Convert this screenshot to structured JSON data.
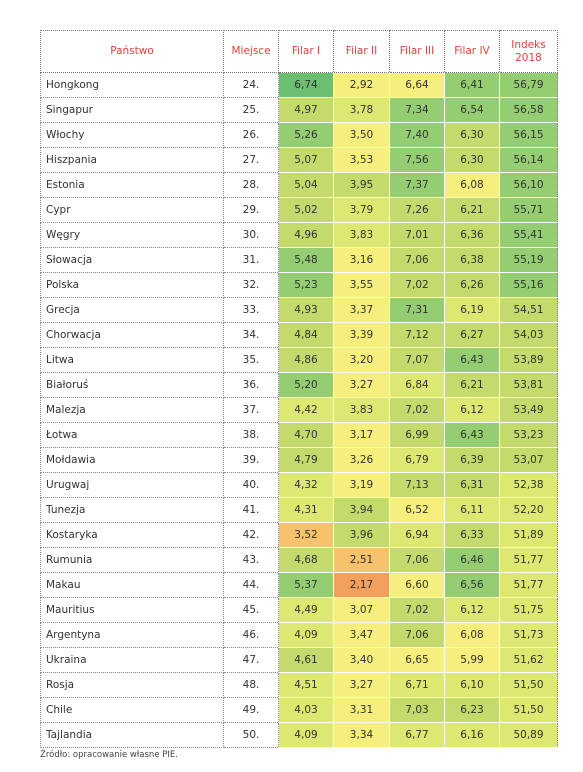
{
  "headers": {
    "country": "Państwo",
    "place": "Miejsce",
    "f1": "Filar I",
    "f2": "Filar II",
    "f3": "Filar III",
    "f4": "Filar IV",
    "index": "Indeks\n2018"
  },
  "colors": {
    "dark_green": "#6cbf71",
    "mid_green": "#95ce72",
    "light_green": "#c3db6c",
    "yellow_green": "#dde872",
    "yellow": "#f6ef7d",
    "orange": "#f6c26c",
    "dark_orange": "#f2a05e",
    "header_text": "#e0433c"
  },
  "rows": [
    {
      "country": "Hongkong",
      "place": "24.",
      "f1": "6,74",
      "f2": "2,92",
      "f3": "6,64",
      "f4": "6,41",
      "index": "56,79"
    },
    {
      "country": "Singapur",
      "place": "25.",
      "f1": "4,97",
      "f2": "3,78",
      "f3": "7,34",
      "f4": "6,54",
      "index": "56,58"
    },
    {
      "country": "Włochy",
      "place": "26.",
      "f1": "5,26",
      "f2": "3,50",
      "f3": "7,40",
      "f4": "6,30",
      "index": "56,15"
    },
    {
      "country": "Hiszpania",
      "place": "27.",
      "f1": "5,07",
      "f2": "3,53",
      "f3": "7,56",
      "f4": "6,30",
      "index": "56,14"
    },
    {
      "country": "Estonia",
      "place": "28.",
      "f1": "5,04",
      "f2": "3,95",
      "f3": "7,37",
      "f4": "6,08",
      "index": "56,10"
    },
    {
      "country": "Cypr",
      "place": "29.",
      "f1": "5,02",
      "f2": "3,79",
      "f3": "7,26",
      "f4": "6,21",
      "index": "55,71"
    },
    {
      "country": "Węgry",
      "place": "30.",
      "f1": "4,96",
      "f2": "3,83",
      "f3": "7,01",
      "f4": "6,36",
      "index": "55,41"
    },
    {
      "country": "Słowacja",
      "place": "31.",
      "f1": "5,48",
      "f2": "3,16",
      "f3": "7,06",
      "f4": "6,38",
      "index": "55,19"
    },
    {
      "country": "Polska",
      "place": "32.",
      "f1": "5,23",
      "f2": "3,55",
      "f3": "7,02",
      "f4": "6,26",
      "index": "55,16"
    },
    {
      "country": "Grecja",
      "place": "33.",
      "f1": "4,93",
      "f2": "3,37",
      "f3": "7,31",
      "f4": "6,19",
      "index": "54,51"
    },
    {
      "country": "Chorwacja",
      "place": "34.",
      "f1": "4,84",
      "f2": "3,39",
      "f3": "7,12",
      "f4": "6,27",
      "index": "54,03"
    },
    {
      "country": "Litwa",
      "place": "35.",
      "f1": "4,86",
      "f2": "3,20",
      "f3": "7,07",
      "f4": "6,43",
      "index": "53,89"
    },
    {
      "country": "Białoruś",
      "place": "36.",
      "f1": "5,20",
      "f2": "3,27",
      "f3": "6,84",
      "f4": "6,21",
      "index": "53,81"
    },
    {
      "country": "Malezja",
      "place": "37.",
      "f1": "4,42",
      "f2": "3,83",
      "f3": "7,02",
      "f4": "6,12",
      "index": "53,49"
    },
    {
      "country": "Łotwa",
      "place": "38.",
      "f1": "4,70",
      "f2": "3,17",
      "f3": "6,99",
      "f4": "6,43",
      "index": "53,23"
    },
    {
      "country": "Mołdawia",
      "place": "39.",
      "f1": "4,79",
      "f2": "3,26",
      "f3": "6,79",
      "f4": "6,39",
      "index": "53,07"
    },
    {
      "country": "Urugwaj",
      "place": "40.",
      "f1": "4,32",
      "f2": "3,19",
      "f3": "7,13",
      "f4": "6,31",
      "index": "52,38"
    },
    {
      "country": "Tunezja",
      "place": "41.",
      "f1": "4,31",
      "f2": "3,94",
      "f3": "6,52",
      "f4": "6,11",
      "index": "52,20"
    },
    {
      "country": "Kostaryka",
      "place": "42.",
      "f1": "3,52",
      "f2": "3,96",
      "f3": "6,94",
      "f4": "6,33",
      "index": "51,89"
    },
    {
      "country": "Rumunia",
      "place": "43.",
      "f1": "4,68",
      "f2": "2,51",
      "f3": "7,06",
      "f4": "6,46",
      "index": "51,77"
    },
    {
      "country": "Makau",
      "place": "44.",
      "f1": "5,37",
      "f2": "2,17",
      "f3": "6,60",
      "f4": "6,56",
      "index": "51,77"
    },
    {
      "country": "Mauritius",
      "place": "45.",
      "f1": "4,49",
      "f2": "3,07",
      "f3": "7,02",
      "f4": "6,12",
      "index": "51,75"
    },
    {
      "country": "Argentyna",
      "place": "46.",
      "f1": "4,09",
      "f2": "3,47",
      "f3": "7,06",
      "f4": "6,08",
      "index": "51,73"
    },
    {
      "country": "Ukraina",
      "place": "47.",
      "f1": "4,61",
      "f2": "3,40",
      "f3": "6,65",
      "f4": "5,99",
      "index": "51,62"
    },
    {
      "country": "Rosja",
      "place": "48.",
      "f1": "4,51",
      "f2": "3,27",
      "f3": "6,71",
      "f4": "6,10",
      "index": "51,50"
    },
    {
      "country": "Chile",
      "place": "49.",
      "f1": "4,03",
      "f2": "3,31",
      "f3": "7,03",
      "f4": "6,23",
      "index": "51,50"
    },
    {
      "country": "Tajlandia",
      "place": "50.",
      "f1": "4,09",
      "f2": "3,34",
      "f3": "6,77",
      "f4": "6,16",
      "index": "50,89"
    }
  ],
  "source": "Źródło: opracowanie własne PIE."
}
